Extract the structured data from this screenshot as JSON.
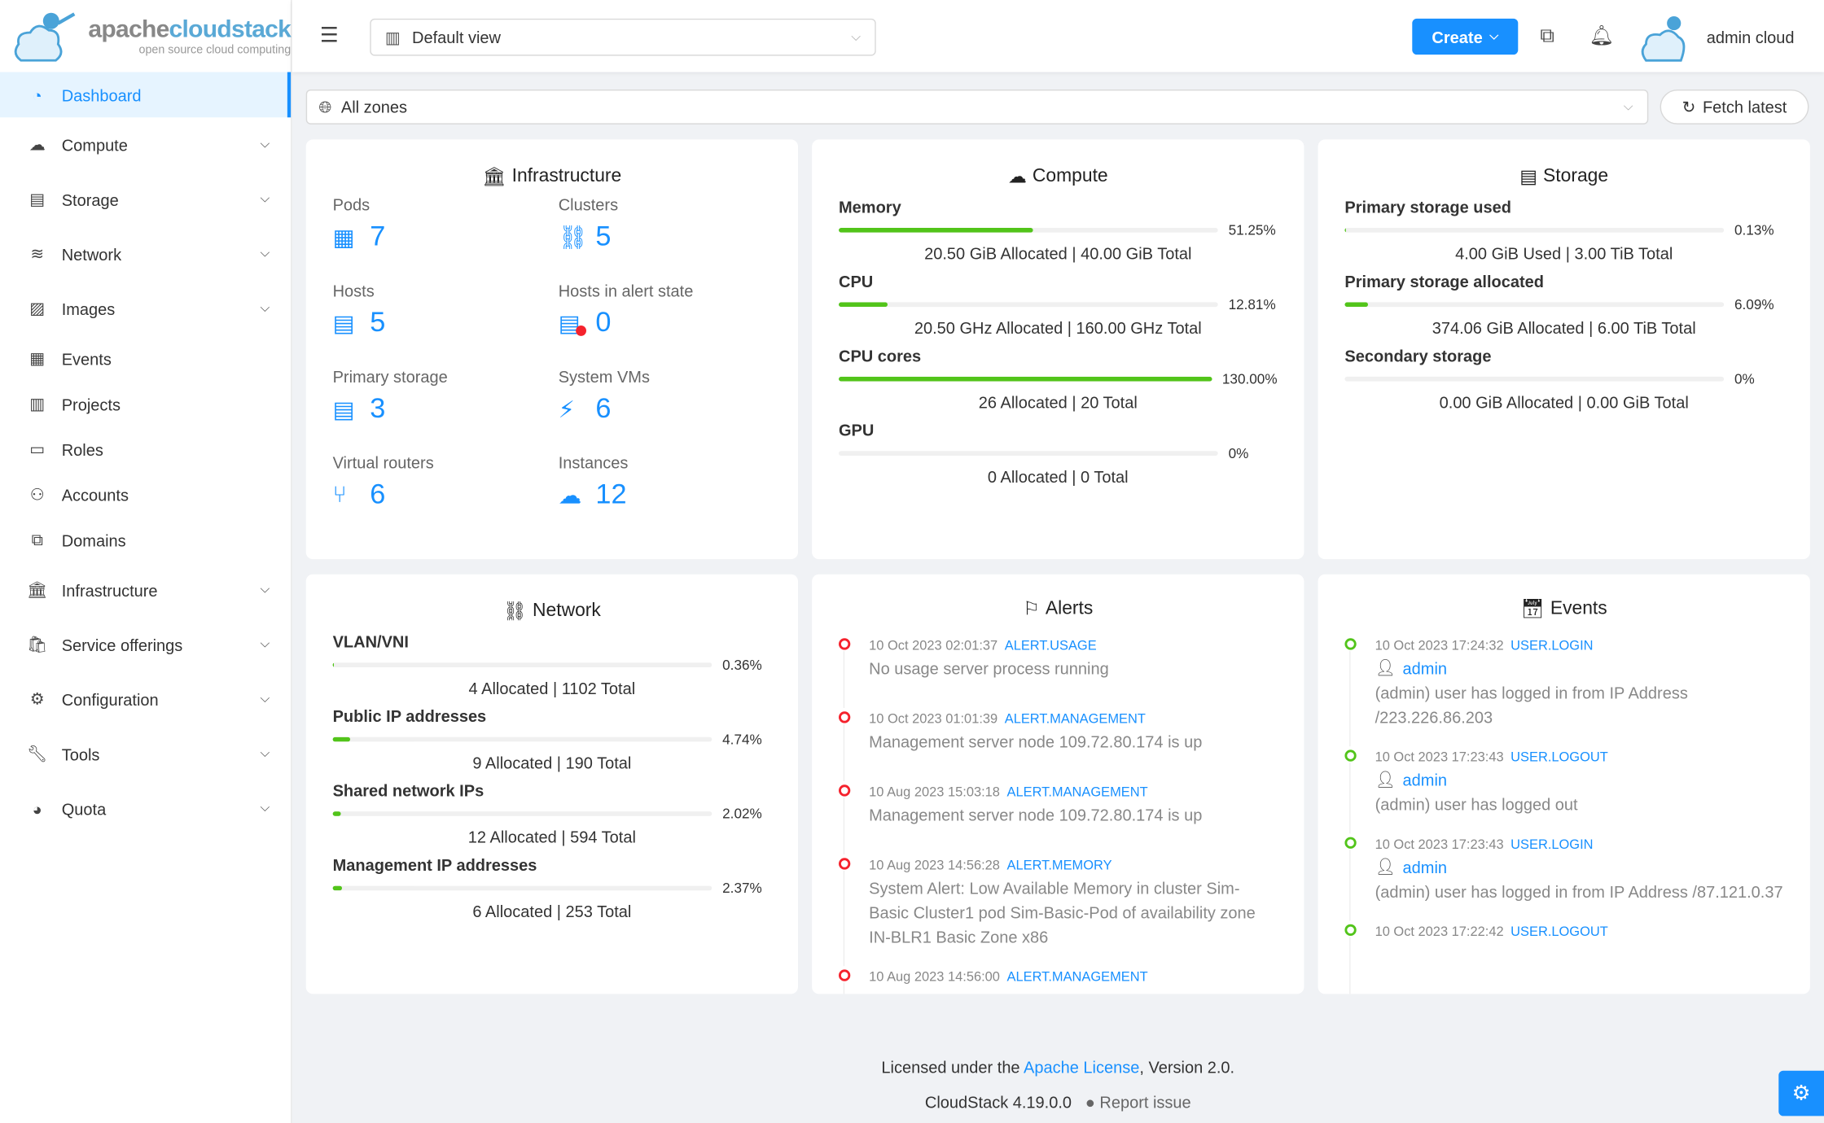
{
  "logo": {
    "brand_a": "apache",
    "brand_b": "cloudstack",
    "tagline": "open source cloud computing"
  },
  "colors": {
    "accent": "#1890ff",
    "progress": "#52c41a",
    "alert": "#f5222d"
  },
  "sidebar": {
    "items": [
      {
        "label": "Dashboard",
        "icon": "dashboard-icon",
        "active": true
      },
      {
        "label": "Compute",
        "icon": "cloud-icon",
        "expandable": true
      },
      {
        "label": "Storage",
        "icon": "database-icon",
        "expandable": true
      },
      {
        "label": "Network",
        "icon": "wifi-icon",
        "expandable": true
      },
      {
        "label": "Images",
        "icon": "picture-icon",
        "expandable": true
      },
      {
        "label": "Events",
        "icon": "schedule-icon"
      },
      {
        "label": "Projects",
        "icon": "project-icon"
      },
      {
        "label": "Roles",
        "icon": "idcard-icon"
      },
      {
        "label": "Accounts",
        "icon": "team-icon"
      },
      {
        "label": "Domains",
        "icon": "block-icon"
      },
      {
        "label": "Infrastructure",
        "icon": "bank-icon",
        "expandable": true
      },
      {
        "label": "Service offerings",
        "icon": "shopping-icon",
        "expandable": true
      },
      {
        "label": "Configuration",
        "icon": "setting-icon",
        "expandable": true
      },
      {
        "label": "Tools",
        "icon": "tool-icon",
        "expandable": true
      },
      {
        "label": "Quota",
        "icon": "pie-chart-icon",
        "expandable": true
      }
    ]
  },
  "header": {
    "view": "Default view",
    "create": "Create",
    "user": "admin cloud"
  },
  "toolbar": {
    "zone": "All zones",
    "fetch": "Fetch latest"
  },
  "infrastructure": {
    "title": "Infrastructure",
    "stats": [
      {
        "label": "Pods",
        "value": "7"
      },
      {
        "label": "Clusters",
        "value": "5"
      },
      {
        "label": "Hosts",
        "value": "5"
      },
      {
        "label": "Hosts in alert state",
        "value": "0"
      },
      {
        "label": "Primary storage",
        "value": "3"
      },
      {
        "label": "System VMs",
        "value": "6"
      },
      {
        "label": "Virtual routers",
        "value": "6"
      },
      {
        "label": "Instances",
        "value": "12"
      }
    ]
  },
  "compute": {
    "title": "Compute",
    "resources": [
      {
        "name": "Memory",
        "pct": "51.25%",
        "fill": 51.25,
        "detail": "20.50 GiB Allocated | 40.00 GiB Total"
      },
      {
        "name": "CPU",
        "pct": "12.81%",
        "fill": 12.81,
        "detail": "20.50 GHz Allocated | 160.00 GHz Total"
      },
      {
        "name": "CPU cores",
        "pct": "130.00%",
        "fill": 100,
        "detail": "26 Allocated | 20 Total"
      },
      {
        "name": "GPU",
        "pct": "0%",
        "fill": 0,
        "detail": "0 Allocated | 0 Total"
      }
    ]
  },
  "storage": {
    "title": "Storage",
    "resources": [
      {
        "name": "Primary storage used",
        "pct": "0.13%",
        "fill": 0.13,
        "detail": "4.00 GiB Used | 3.00 TiB Total"
      },
      {
        "name": "Primary storage allocated",
        "pct": "6.09%",
        "fill": 6.09,
        "detail": "374.06 GiB Allocated | 6.00 TiB Total"
      },
      {
        "name": "Secondary storage",
        "pct": "0%",
        "fill": 0,
        "detail": "0.00 GiB Allocated | 0.00 GiB Total"
      }
    ]
  },
  "network": {
    "title": "Network",
    "resources": [
      {
        "name": "VLAN/VNI",
        "pct": "0.36%",
        "fill": 0.36,
        "detail": "4 Allocated | 1102 Total"
      },
      {
        "name": "Public IP addresses",
        "pct": "4.74%",
        "fill": 4.74,
        "detail": "9 Allocated | 190 Total"
      },
      {
        "name": "Shared network IPs",
        "pct": "2.02%",
        "fill": 2.02,
        "detail": "12 Allocated | 594 Total"
      },
      {
        "name": "Management IP addresses",
        "pct": "2.37%",
        "fill": 2.37,
        "detail": "6 Allocated | 253 Total"
      }
    ]
  },
  "alerts": {
    "title": "Alerts",
    "items": [
      {
        "time": "10 Oct 2023 02:01:37",
        "type": "ALERT.USAGE",
        "desc": "No usage server process running"
      },
      {
        "time": "10 Oct 2023 01:01:39",
        "type": "ALERT.MANAGEMENT",
        "desc": "Management server node 109.72.80.174 is up"
      },
      {
        "time": "10 Aug 2023 15:03:18",
        "type": "ALERT.MANAGEMENT",
        "desc": "Management server node 109.72.80.174 is up"
      },
      {
        "time": "10 Aug 2023 14:56:28",
        "type": "ALERT.MEMORY",
        "desc": "System Alert: Low Available Memory in cluster Sim-Basic Cluster1 pod Sim-Basic-Pod of availability zone IN-BLR1 Basic Zone x86"
      },
      {
        "time": "10 Aug 2023 14:56:00",
        "type": "ALERT.MANAGEMENT",
        "desc": ""
      }
    ]
  },
  "events": {
    "title": "Events",
    "items": [
      {
        "time": "10 Oct 2023 17:24:32",
        "type": "USER.LOGIN",
        "user": "admin",
        "desc": "(admin) user has logged in from IP Address /223.226.86.203"
      },
      {
        "time": "10 Oct 2023 17:23:43",
        "type": "USER.LOGOUT",
        "user": "admin",
        "desc": "(admin) user has logged out"
      },
      {
        "time": "10 Oct 2023 17:23:43",
        "type": "USER.LOGIN",
        "user": "admin",
        "desc": "(admin) user has logged in from IP Address /87.121.0.37"
      },
      {
        "time": "10 Oct 2023 17:22:42",
        "type": "USER.LOGOUT",
        "user": "",
        "desc": ""
      }
    ]
  },
  "footer": {
    "license_prefix": "Licensed under the ",
    "license_link": "Apache License",
    "license_suffix": ", Version 2.0.",
    "version": "CloudStack 4.19.0.0",
    "report": "Report issue"
  }
}
